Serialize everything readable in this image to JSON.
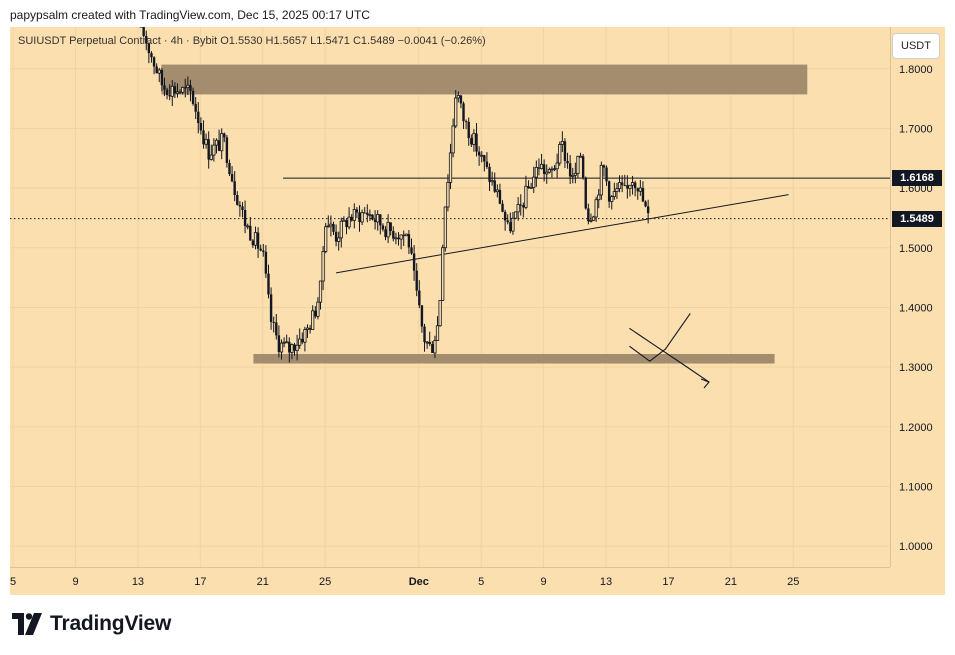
{
  "attribution": "papypsalm created with TradingView.com, Dec 15, 2025 00:17 UTC",
  "header": {
    "symbol": "SUIUSDT Perpetual Contract",
    "interval": "4h",
    "exchange": "Bybit",
    "open": "O1.5530",
    "high": "H1.5657",
    "low": "L1.5471",
    "close": "C1.5489",
    "change": "−0.0041 (−0.26%)"
  },
  "currency": "USDT",
  "footer": {
    "brand": "TradingView"
  },
  "colors": {
    "background": "#fbdfae",
    "candle": "#131722",
    "zone": "#9a8467",
    "grid": "#f0d3a2",
    "label_bg": "#131722"
  },
  "chart_data": {
    "type": "candlestick",
    "title": "SUIUSDT Perpetual Contract · 4h · Bybit",
    "ylim": [
      0.965,
      1.87
    ],
    "y_ticks": [
      "1.0000",
      "1.1000",
      "1.2000",
      "1.3000",
      "1.4000",
      "1.5000",
      "1.6000",
      "1.7000",
      "1.8000"
    ],
    "y_tick_values": [
      1.0,
      1.1,
      1.2,
      1.3,
      1.4,
      1.5,
      1.6,
      1.7,
      1.8
    ],
    "x_ticks": [
      "5",
      "9",
      "13",
      "17",
      "21",
      "25",
      "Dec",
      "5",
      "9",
      "13",
      "17",
      "21",
      "25"
    ],
    "x_tick_days": [
      -26,
      -22,
      -18,
      -14,
      -10,
      -6,
      0,
      4,
      8,
      12,
      16,
      20,
      24
    ],
    "x_range_days": [
      -26.2,
      30.2
    ],
    "price_labels": [
      {
        "label": "1.6168",
        "value": 1.6168,
        "style": "line"
      },
      {
        "label": "1.5489",
        "value": 1.5489,
        "style": "dotted"
      }
    ],
    "resistance_line": {
      "value": 1.6168,
      "from_day": -8.7,
      "to_day": 30.2
    },
    "rising_trendline": {
      "from": [
        -5.3,
        1.458
      ],
      "to": [
        23.7,
        1.589
      ]
    },
    "zones": [
      {
        "name": "upper supply zone",
        "from_day": -16.5,
        "to_day": 24.9,
        "low": 1.757,
        "high": 1.807
      },
      {
        "name": "lower demand zone",
        "from_day": -10.6,
        "to_day": 22.8,
        "low": 1.306,
        "high": 1.322
      }
    ],
    "price_path": [
      [
        -17.8,
        1.87
      ],
      [
        -16.4,
        1.77
      ],
      [
        -14.6,
        1.76
      ],
      [
        -13.5,
        1.66
      ],
      [
        -12.5,
        1.68
      ],
      [
        -11.8,
        1.6
      ],
      [
        -11.1,
        1.54
      ],
      [
        -10.0,
        1.49
      ],
      [
        -9.5,
        1.38
      ],
      [
        -9.0,
        1.34
      ],
      [
        -8.3,
        1.33
      ],
      [
        -7.2,
        1.36
      ],
      [
        -6.7,
        1.39
      ],
      [
        -6.3,
        1.43
      ],
      [
        -6.0,
        1.55
      ],
      [
        -5.3,
        1.52
      ],
      [
        -4.5,
        1.55
      ],
      [
        -3.3,
        1.56
      ],
      [
        -2.0,
        1.53
      ],
      [
        -0.7,
        1.52
      ],
      [
        -0.2,
        1.43
      ],
      [
        0.3,
        1.35
      ],
      [
        0.8,
        1.33
      ],
      [
        1.3,
        1.38
      ],
      [
        1.6,
        1.55
      ],
      [
        2.0,
        1.65
      ],
      [
        2.4,
        1.77
      ],
      [
        2.8,
        1.72
      ],
      [
        3.5,
        1.68
      ],
      [
        4.5,
        1.62
      ],
      [
        5.2,
        1.58
      ],
      [
        5.7,
        1.53
      ],
      [
        6.4,
        1.56
      ],
      [
        7.2,
        1.61
      ],
      [
        7.7,
        1.64
      ],
      [
        8.4,
        1.62
      ],
      [
        9.2,
        1.67
      ],
      [
        9.9,
        1.61
      ],
      [
        10.4,
        1.66
      ],
      [
        10.8,
        1.55
      ],
      [
        11.3,
        1.57
      ],
      [
        11.8,
        1.64
      ],
      [
        12.3,
        1.58
      ],
      [
        12.8,
        1.6
      ],
      [
        13.3,
        1.59
      ],
      [
        13.6,
        1.62
      ],
      [
        14.0,
        1.61
      ],
      [
        14.4,
        1.575
      ],
      [
        14.7,
        1.55
      ]
    ],
    "annotation_arrow": [
      [
        13.5,
        1.335
      ],
      [
        14.8,
        1.31
      ],
      [
        15.8,
        1.33
      ],
      [
        17.4,
        1.39
      ]
    ],
    "annotation_arrow2": [
      [
        13.5,
        1.365
      ],
      [
        15.2,
        1.335
      ],
      [
        17.2,
        1.3
      ],
      [
        18.6,
        1.275
      ]
    ]
  }
}
